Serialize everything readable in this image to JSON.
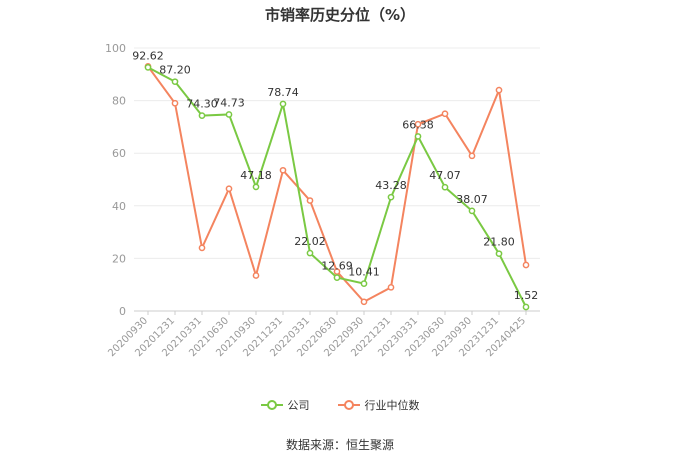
{
  "title": "市销率历史分位（%）",
  "source": "数据来源：恒生聚源",
  "chart_data": {
    "type": "line",
    "title": "市销率历史分位（%）",
    "x": [
      "20200930",
      "20201231",
      "20210331",
      "20210630",
      "20210930",
      "20211231",
      "20220331",
      "20220630",
      "20220930",
      "20221231",
      "20230331",
      "20230630",
      "20230930",
      "20231231",
      "20240425"
    ],
    "ylim": [
      0,
      100
    ],
    "yticks": [
      0,
      20,
      40,
      60,
      80,
      100
    ],
    "grid": true,
    "legend_position": "bottom",
    "series": [
      {
        "name": "公司",
        "color": "#7ac943",
        "values": [
          92.62,
          87.2,
          74.3,
          74.73,
          47.18,
          78.74,
          22.02,
          12.69,
          10.41,
          43.28,
          66.38,
          47.07,
          38.07,
          21.8,
          1.52
        ],
        "labels": [
          "92.62",
          "87.20",
          "74.30",
          "74.73",
          "47.18",
          "78.74",
          "22.02",
          "12.69",
          "10.41",
          "43.28",
          "66.38",
          "47.07",
          "38.07",
          "21.80",
          "1.52"
        ]
      },
      {
        "name": "行业中位数",
        "color": "#f4845f",
        "values": [
          93,
          79,
          24,
          46.5,
          13.5,
          53.5,
          42,
          15,
          3.5,
          9,
          71,
          75,
          59,
          84,
          17.5
        ]
      }
    ]
  }
}
